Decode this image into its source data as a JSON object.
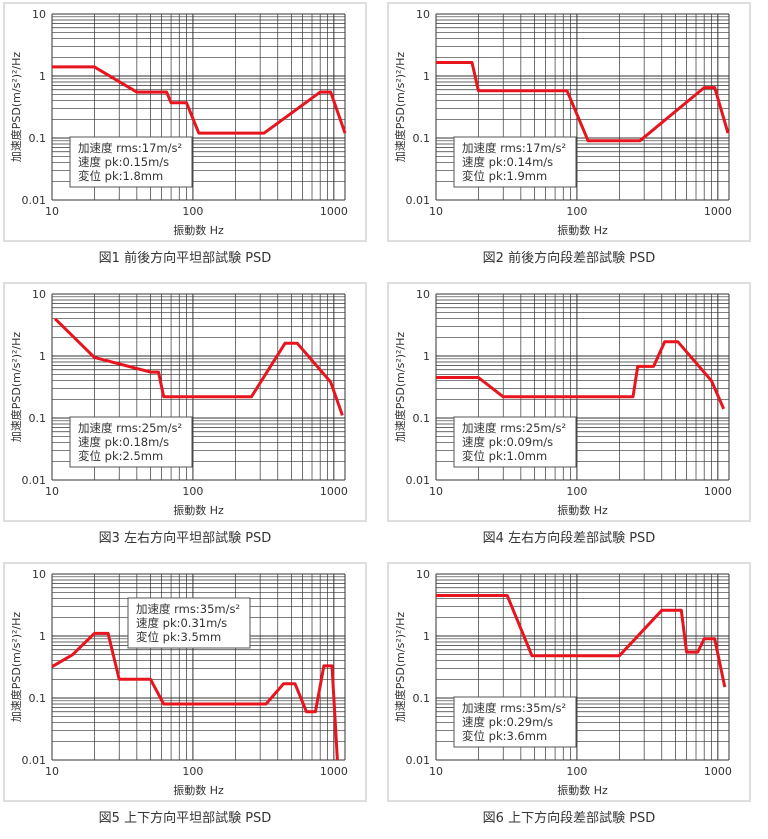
{
  "chart_data": [
    {
      "type": "line",
      "title": "図1 前後方向平坦部試験 PSD",
      "xlabel": "振動数 Hz",
      "ylabel": "加速度PSD(m/s²)²/Hz",
      "xscale": "log",
      "yscale": "log",
      "xlim": [
        10,
        1200
      ],
      "ylim": [
        0.01,
        10
      ],
      "grid": true,
      "xticks": [
        "10",
        "100",
        "1000"
      ],
      "yticks": [
        "0.01",
        "0.1",
        "1",
        "10"
      ],
      "info": [
        "加速度 rms:17m/s²",
        "速度 pk:0.15m/s",
        "変位 pk:1.8mm"
      ],
      "info_placement": "bottom-left",
      "points": [
        [
          10,
          1.4
        ],
        [
          20,
          1.4
        ],
        [
          40,
          0.55
        ],
        [
          65,
          0.55
        ],
        [
          70,
          0.37
        ],
        [
          90,
          0.37
        ],
        [
          110,
          0.12
        ],
        [
          320,
          0.12
        ],
        [
          800,
          0.55
        ],
        [
          950,
          0.55
        ],
        [
          1200,
          0.12
        ]
      ]
    },
    {
      "type": "line",
      "title": "図2 前後方向段差部試験 PSD",
      "xlabel": "振動数 Hz",
      "ylabel": "加速度PSD(m/s²)²/Hz",
      "xscale": "log",
      "yscale": "log",
      "xlim": [
        10,
        1200
      ],
      "ylim": [
        0.01,
        10
      ],
      "grid": true,
      "xticks": [
        "10",
        "100",
        "1000"
      ],
      "yticks": [
        "0.01",
        "0.1",
        "1",
        "10"
      ],
      "info": [
        "加速度 rms:17m/s²",
        "速度 pk:0.14m/s",
        "変位 pk:1.9mm"
      ],
      "info_placement": "bottom-left",
      "points": [
        [
          10,
          1.65
        ],
        [
          18,
          1.65
        ],
        [
          20,
          0.58
        ],
        [
          85,
          0.58
        ],
        [
          120,
          0.09
        ],
        [
          280,
          0.09
        ],
        [
          800,
          0.65
        ],
        [
          950,
          0.65
        ],
        [
          1180,
          0.12
        ]
      ]
    },
    {
      "type": "line",
      "title": "図3 左右方向平坦部試験 PSD",
      "xlabel": "振動数 Hz",
      "ylabel": "加速度PSD(m/s²)²/Hz",
      "xscale": "log",
      "yscale": "log",
      "xlim": [
        10,
        1200
      ],
      "ylim": [
        0.01,
        10
      ],
      "grid": true,
      "xticks": [
        "10",
        "100",
        "1000"
      ],
      "yticks": [
        "0.01",
        "0.1",
        "1",
        "10"
      ],
      "info": [
        "加速度 rms:25m/s²",
        "速度 pk:0.18m/s",
        "変位 pk:2.5mm"
      ],
      "info_placement": "bottom-left",
      "points": [
        [
          10.5,
          4
        ],
        [
          20,
          0.95
        ],
        [
          50,
          0.55
        ],
        [
          57,
          0.55
        ],
        [
          62,
          0.22
        ],
        [
          260,
          0.22
        ],
        [
          450,
          1.6
        ],
        [
          550,
          1.6
        ],
        [
          950,
          0.38
        ],
        [
          1150,
          0.11
        ]
      ]
    },
    {
      "type": "line",
      "title": "図4 左右方向段差部試験 PSD",
      "xlabel": "振動数 Hz",
      "ylabel": "加速度PSD(m/s²)²/Hz",
      "xscale": "log",
      "yscale": "log",
      "xlim": [
        10,
        1200
      ],
      "ylim": [
        0.01,
        10
      ],
      "grid": true,
      "xticks": [
        "10",
        "100",
        "1000"
      ],
      "yticks": [
        "0.01",
        "0.1",
        "1",
        "10"
      ],
      "info": [
        "加速度 rms:25m/s²",
        "速度 pk:0.09m/s",
        "変位 pk:1.0mm"
      ],
      "info_placement": "bottom-left",
      "points": [
        [
          10,
          0.45
        ],
        [
          20,
          0.45
        ],
        [
          30,
          0.22
        ],
        [
          250,
          0.22
        ],
        [
          270,
          0.68
        ],
        [
          350,
          0.68
        ],
        [
          420,
          1.7
        ],
        [
          520,
          1.7
        ],
        [
          900,
          0.4
        ],
        [
          1100,
          0.14
        ]
      ]
    },
    {
      "type": "line",
      "title": "図5 上下方向平坦部試験 PSD",
      "xlabel": "振動数 Hz",
      "ylabel": "加速度PSD(m/s²)²/Hz",
      "xscale": "log",
      "yscale": "log",
      "xlim": [
        10,
        1200
      ],
      "ylim": [
        0.01,
        10
      ],
      "grid": true,
      "xticks": [
        "10",
        "100",
        "1000"
      ],
      "yticks": [
        "0.01",
        "0.1",
        "1",
        "10"
      ],
      "info": [
        "加速度 rms:35m/s²",
        "速度 pk:0.31m/s",
        "変位 pk:3.5mm"
      ],
      "info_placement": "top-center",
      "points": [
        [
          10,
          0.32
        ],
        [
          14,
          0.5
        ],
        [
          20,
          1.1
        ],
        [
          25,
          1.1
        ],
        [
          30,
          0.2
        ],
        [
          50,
          0.2
        ],
        [
          62,
          0.08
        ],
        [
          330,
          0.08
        ],
        [
          440,
          0.17
        ],
        [
          530,
          0.17
        ],
        [
          640,
          0.06
        ],
        [
          740,
          0.06
        ],
        [
          850,
          0.33
        ],
        [
          970,
          0.33
        ],
        [
          1060,
          0.01
        ]
      ]
    },
    {
      "type": "line",
      "title": "図6 上下方向段差部試験 PSD",
      "xlabel": "振動数 Hz",
      "ylabel": "加速度PSD(m/s²)²/Hz",
      "xscale": "log",
      "yscale": "log",
      "xlim": [
        10,
        1200
      ],
      "ylim": [
        0.01,
        10
      ],
      "grid": true,
      "xticks": [
        "10",
        "100",
        "1000"
      ],
      "yticks": [
        "0.01",
        "0.1",
        "1",
        "10"
      ],
      "info": [
        "加速度 rms:35m/s²",
        "速度 pk:0.29m/s",
        "変位 pk:3.6mm"
      ],
      "info_placement": "bottom-left",
      "points": [
        [
          10,
          4.5
        ],
        [
          32,
          4.5
        ],
        [
          48,
          0.48
        ],
        [
          200,
          0.48
        ],
        [
          400,
          2.6
        ],
        [
          550,
          2.6
        ],
        [
          600,
          0.55
        ],
        [
          720,
          0.55
        ],
        [
          800,
          0.9
        ],
        [
          950,
          0.9
        ],
        [
          1120,
          0.15
        ]
      ]
    }
  ],
  "colors": {
    "line": "#e8141e",
    "grid": "#333333",
    "frame": "#dddddd"
  }
}
